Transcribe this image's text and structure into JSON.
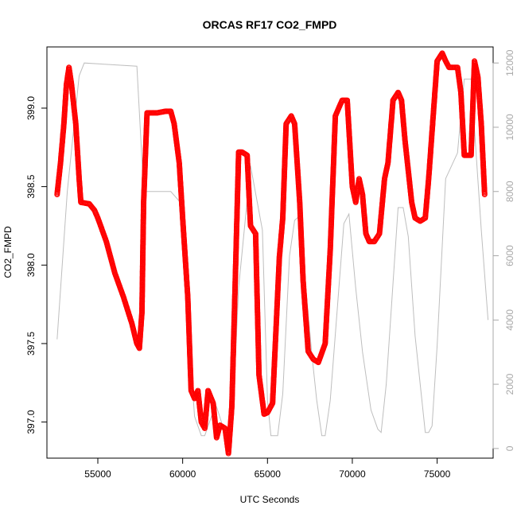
{
  "chart_data": {
    "type": "scatter",
    "title": "ORCAS RF17 CO2_FMPD",
    "xlabel": "UTC Seconds",
    "ylabel": "CO2_FMPD",
    "xlim": [
      52000,
      78300
    ],
    "ylim": [
      396.77,
      399.39
    ],
    "y2lim": [
      -300,
      12500
    ],
    "x_ticks": [
      55000,
      60000,
      65000,
      70000,
      75000
    ],
    "x_tick_labels": [
      "55000",
      "60000",
      "65000",
      "70000",
      "75000"
    ],
    "y_ticks": [
      397.0,
      397.5,
      398.0,
      398.5,
      399.0
    ],
    "y_tick_labels": [
      "397.0",
      "397.5",
      "398.0",
      "398.5",
      "399.0"
    ],
    "y2_ticks": [
      0,
      2000,
      4000,
      6000,
      8000,
      10000,
      12000
    ],
    "y2_tick_labels": [
      "0",
      "2000",
      "4000",
      "6000",
      "8000",
      "10000",
      "12000"
    ],
    "grid": false,
    "series": [
      {
        "style": "points",
        "axis": "left",
        "color": "#ff0000",
        "x": [
          52600,
          52800,
          53000,
          53150,
          53300,
          53450,
          53700,
          53900,
          54000,
          54500,
          54800,
          55000,
          55500,
          56000,
          56500,
          57000,
          57300,
          57450,
          57600,
          57700,
          57900,
          58500,
          59000,
          59300,
          59500,
          59800,
          60000,
          60300,
          60500,
          60700,
          60900,
          61100,
          61300,
          61500,
          61800,
          62000,
          62200,
          62500,
          62700,
          62900,
          63100,
          63300,
          63500,
          63800,
          64000,
          64300,
          64500,
          64800,
          65000,
          65300,
          65700,
          65900,
          66100,
          66400,
          66600,
          66900,
          67100,
          67400,
          67700,
          68000,
          68400,
          68700,
          69000,
          69400,
          69700,
          70000,
          70200,
          70400,
          70600,
          70800,
          71000,
          71300,
          71600,
          71900,
          72100,
          72400,
          72700,
          72900,
          73100,
          73300,
          73500,
          73700,
          74000,
          74300,
          74500,
          74800,
          75000,
          75300,
          75500,
          75700,
          75800,
          75900,
          76200,
          76400,
          76600,
          76800,
          77000,
          77200,
          77400,
          77600,
          77800
        ],
        "y": [
          398.45,
          398.65,
          398.9,
          399.15,
          399.26,
          399.15,
          398.9,
          398.55,
          398.4,
          398.39,
          398.35,
          398.3,
          398.15,
          397.95,
          397.8,
          397.63,
          397.5,
          397.47,
          397.7,
          398.4,
          398.97,
          398.97,
          398.98,
          398.98,
          398.9,
          398.65,
          398.3,
          397.8,
          397.2,
          397.15,
          397.2,
          397.0,
          396.96,
          397.2,
          397.12,
          396.9,
          396.98,
          396.96,
          396.8,
          397.1,
          397.9,
          398.72,
          398.72,
          398.7,
          398.25,
          398.2,
          397.3,
          397.05,
          397.06,
          397.12,
          398.05,
          398.3,
          398.9,
          398.95,
          398.9,
          398.4,
          397.9,
          397.45,
          397.4,
          397.38,
          397.5,
          398.1,
          398.95,
          399.05,
          399.05,
          398.5,
          398.4,
          398.55,
          398.45,
          398.2,
          398.15,
          398.15,
          398.2,
          398.55,
          398.65,
          399.05,
          399.1,
          399.05,
          398.8,
          398.6,
          398.4,
          398.3,
          398.28,
          398.3,
          398.55,
          399.0,
          399.3,
          399.35,
          399.3,
          399.26,
          399.26,
          399.26,
          399.26,
          399.1,
          398.7,
          398.7,
          398.7,
          399.3,
          399.2,
          398.9,
          398.45
        ]
      },
      {
        "style": "line",
        "axis": "right",
        "color": "#bebebe",
        "x": [
          52600,
          53200,
          53900,
          54200,
          57300,
          57700,
          59300,
          59800,
          60700,
          61100,
          61300,
          61700,
          62000,
          62300,
          62600,
          62700,
          63000,
          63300,
          64000,
          64700,
          65000,
          65200,
          65600,
          65900,
          66300,
          66600,
          66800,
          67000,
          67600,
          67900,
          68200,
          68400,
          68700,
          69500,
          69800,
          70200,
          70600,
          71100,
          71500,
          71700,
          72000,
          72700,
          73000,
          73300,
          73700,
          74300,
          74500,
          74700,
          75000,
          75500,
          76200,
          76600,
          77000,
          77600,
          78000
        ],
        "y": [
          3400,
          8000,
          11600,
          12000,
          11900,
          8000,
          8000,
          7700,
          1000,
          400,
          400,
          1000,
          1300,
          800,
          400,
          400,
          1500,
          5000,
          8800,
          6800,
          1500,
          400,
          400,
          1700,
          6000,
          7100,
          7200,
          6500,
          3000,
          1500,
          400,
          400,
          1500,
          7000,
          7300,
          5000,
          3000,
          1200,
          600,
          500,
          2000,
          7500,
          7500,
          6600,
          3500,
          500,
          500,
          700,
          3200,
          8400,
          9200,
          11500,
          11500,
          6800,
          4000
        ]
      }
    ]
  }
}
